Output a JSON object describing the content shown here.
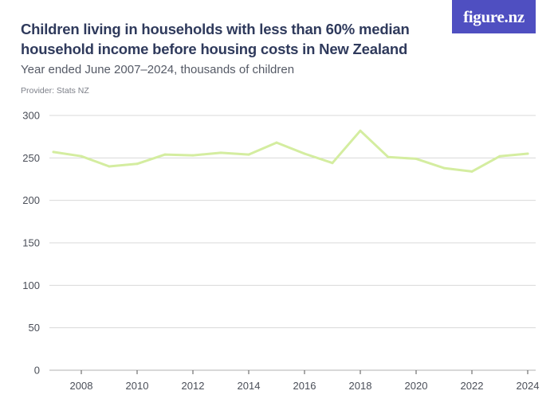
{
  "header": {
    "title": "Children living in households with less than 60% median household income before housing costs in New Zealand",
    "subtitle": "Year ended June 2007–2024, thousands of children",
    "provider": "Provider: Stats NZ",
    "logo_text": "figure.nz"
  },
  "colors": {
    "line": "#d4eda0",
    "grid": "#d9d9d9",
    "logo_bg": "#4f4fc1",
    "title": "#2f3a5c"
  },
  "chart_data": {
    "type": "line",
    "x": [
      2007,
      2008,
      2009,
      2010,
      2011,
      2012,
      2013,
      2014,
      2015,
      2016,
      2017,
      2018,
      2019,
      2020,
      2021,
      2022,
      2023,
      2024
    ],
    "series": [
      {
        "values": [
          257,
          252,
          240,
          243,
          254,
          253,
          256,
          254,
          268,
          255,
          244,
          282,
          251,
          249,
          238,
          234,
          252,
          255
        ]
      }
    ],
    "ylim": [
      0,
      300
    ],
    "yticks": [
      0,
      50,
      100,
      150,
      200,
      250,
      300
    ],
    "xticks": [
      2008,
      2010,
      2012,
      2014,
      2016,
      2018,
      2020,
      2022,
      2024
    ],
    "xlim": [
      2007,
      2024
    ],
    "grid": true
  }
}
